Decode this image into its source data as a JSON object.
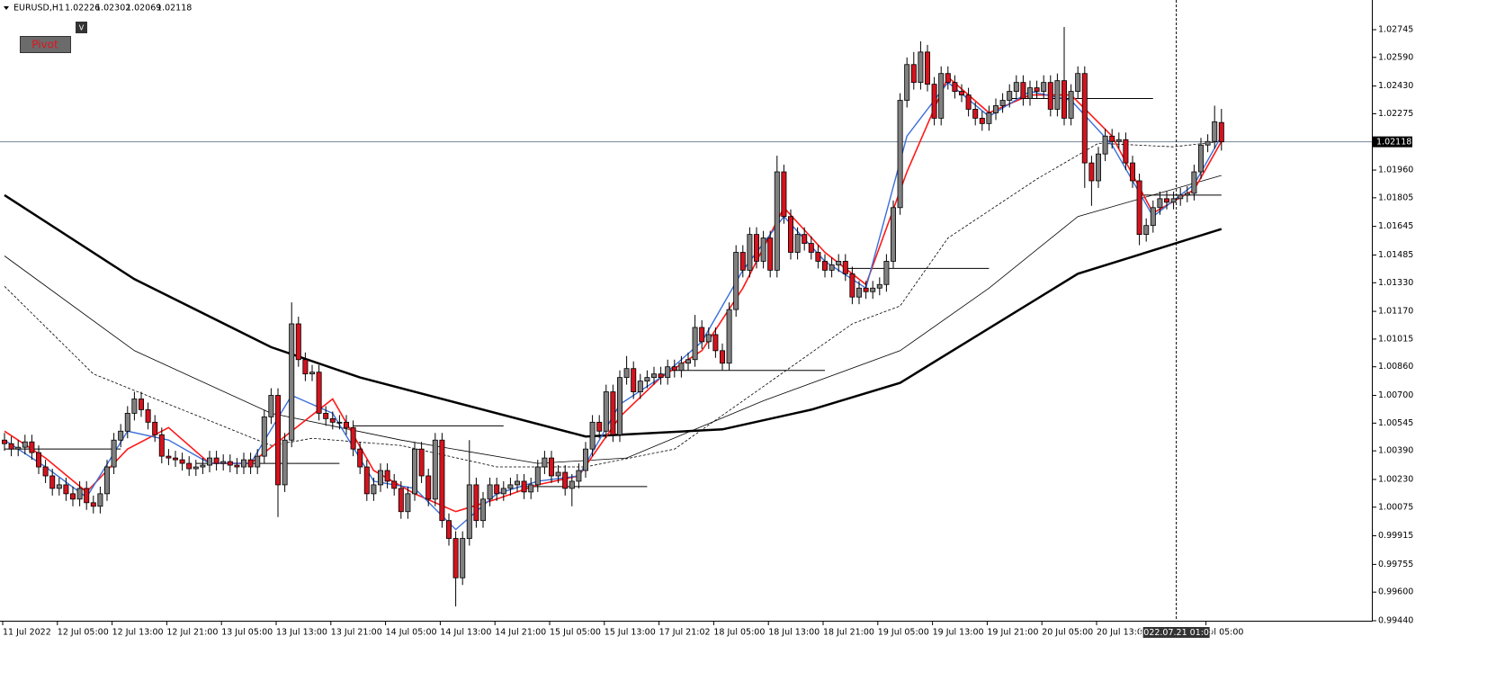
{
  "chart_data": {
    "type": "candlestick",
    "symbol": "EURUSD,H1",
    "buttons": {
      "pivot": "Pivot",
      "toggle": "V"
    },
    "categories": [
      "11 Jul 2022",
      null,
      null,
      null,
      null,
      null,
      null,
      null,
      "12 Jul 05:00",
      null,
      null,
      null,
      null,
      null,
      null,
      null,
      "12 Jul 13:00",
      null,
      null,
      null,
      null,
      null,
      null,
      null,
      "12 Jul 21:00",
      null,
      null,
      null,
      null,
      null,
      null,
      null,
      "13 Jul 05:00",
      null,
      null,
      null,
      null,
      null,
      null,
      null,
      "13 Jul 13:00",
      null,
      null,
      null,
      null,
      null,
      null,
      null,
      "13 Jul 21:00",
      null,
      null,
      null,
      null,
      null,
      null,
      null,
      "14 Jul 05:00",
      null,
      null,
      null,
      null,
      null,
      null,
      null,
      "14 Jul 13:00",
      null,
      null,
      null,
      null,
      null,
      null,
      null,
      "14 Jul 21:00",
      null,
      null,
      null,
      null,
      null,
      null,
      null,
      "15 Jul 05:00",
      null,
      null,
      null,
      null,
      null,
      null,
      null,
      "15 Jul 13:00",
      null,
      null,
      null,
      null,
      null,
      null,
      null,
      "17 Jul 21:02",
      null,
      null,
      null,
      null,
      null,
      null,
      null,
      "18 Jul 05:00",
      null,
      null,
      null,
      null,
      null,
      null,
      null,
      "18 Jul 13:00",
      null,
      null,
      null,
      null,
      null,
      null,
      null,
      "18 Jul 21:00",
      null,
      null,
      null,
      null,
      null,
      null,
      null,
      "19 Jul 05:00",
      null,
      null,
      null,
      null,
      null,
      null,
      null,
      "19 Jul 13:00",
      null,
      null,
      null,
      null,
      null,
      null,
      null,
      "19 Jul 21:00",
      null,
      null,
      null,
      null,
      null,
      null,
      null,
      "20 Jul 05:00",
      null,
      null,
      null,
      null,
      null,
      null,
      null,
      "20 Jul 13:00",
      null,
      null,
      null,
      null,
      null,
      null,
      null,
      null,
      null,
      null,
      null,
      null,
      null,
      null,
      null,
      "Jul 05:00",
      null,
      null
    ],
    "open": [
      1.0045,
      1.0043,
      1.004,
      1.0041,
      1.0044,
      1.0038,
      1.003,
      1.0025,
      1.0018,
      1.002,
      1.0015,
      1.0012,
      1.0018,
      1.001,
      1.0008,
      1.0015,
      1.003,
      1.0045,
      1.005,
      1.006,
      1.0068,
      1.0062,
      1.0055,
      1.0048,
      1.0036,
      1.0035,
      1.0034,
      1.0032,
      1.0029,
      1.003,
      1.0031,
      1.0035,
      1.0032,
      1.0033,
      1.0031,
      1.003,
      1.0034,
      1.003,
      1.0036,
      1.0058,
      1.007,
      1.002,
      1.0045,
      1.011,
      1.009,
      1.0082,
      1.0083,
      1.006,
      1.0057,
      1.0055,
      1.0055,
      1.0052,
      1.004,
      1.003,
      1.0015,
      1.002,
      1.0028,
      1.0022,
      1.0018,
      1.0005,
      1.0015,
      1.004,
      1.0025,
      1.0012,
      1.0045,
      1.0,
      0.999,
      0.9968,
      0.999,
      1.002,
      1.0,
      1.0012,
      1.002,
      1.0015,
      1.0018,
      1.002,
      1.0022,
      1.0016,
      1.002,
      1.003,
      1.0035,
      1.0025,
      1.0027,
      1.0018,
      1.0022,
      1.0028,
      1.004,
      1.0055,
      1.005,
      1.0072,
      1.0048,
      1.008,
      1.0085,
      1.0072,
      1.0078,
      1.008,
      1.0082,
      1.008,
      1.0086,
      1.0084,
      1.0088,
      1.009,
      1.0108,
      1.01,
      1.0104,
      1.0095,
      1.0088,
      1.0118,
      1.015,
      1.014,
      1.016,
      1.0145,
      1.0158,
      1.014,
      1.0195,
      1.017,
      1.015,
      1.016,
      1.0155,
      1.015,
      1.0145,
      1.014,
      1.0143,
      1.0145,
      1.0138,
      1.0125,
      1.013,
      1.0128,
      1.013,
      1.0132,
      1.0145,
      1.0175,
      1.0235,
      1.0255,
      1.0245,
      1.0262,
      1.0244,
      1.0225,
      1.025,
      1.0245,
      1.024,
      1.0238,
      1.023,
      1.0225,
      1.0222,
      1.0228,
      1.0232,
      1.0235,
      1.024,
      1.0245,
      1.0236,
      1.0242,
      1.024,
      1.0245,
      1.023,
      1.0246,
      1.0225,
      1.024,
      1.025,
      1.02,
      1.019,
      1.0205,
      1.0215,
      1.0212,
      1.0213,
      1.02,
      1.019,
      1.016,
      1.0165,
      1.0175,
      1.018,
      1.0178,
      1.018,
      1.0182,
      1.0183,
      1.0195,
      1.021,
      1.0212,
      1.02226
    ],
    "high": [
      1.0049,
      1.0047,
      1.0045,
      1.0048,
      1.0048,
      1.0042,
      1.0034,
      1.0029,
      1.0024,
      1.0024,
      1.0019,
      1.0022,
      1.0022,
      1.0014,
      1.0019,
      1.0034,
      1.0049,
      1.0054,
      1.0064,
      1.0072,
      1.0072,
      1.0066,
      1.0059,
      1.0052,
      1.004,
      1.0039,
      1.0038,
      1.0036,
      1.0034,
      1.0035,
      1.0039,
      1.0039,
      1.0037,
      1.0037,
      1.0035,
      1.0038,
      1.0038,
      1.004,
      1.0062,
      1.0074,
      1.0074,
      1.0049,
      1.0122,
      1.0114,
      1.0094,
      1.0087,
      1.0087,
      1.0064,
      1.0061,
      1.0059,
      1.0059,
      1.0056,
      1.0044,
      1.0034,
      1.0024,
      1.0032,
      1.0032,
      1.0026,
      1.0022,
      1.0019,
      1.0044,
      1.0044,
      1.0029,
      1.0049,
      1.0049,
      1.0004,
      0.9994,
      0.9994,
      1.0045,
      1.0024,
      1.0016,
      1.0024,
      1.0024,
      1.0022,
      1.0024,
      1.0026,
      1.0026,
      1.0024,
      1.0034,
      1.0039,
      1.0039,
      1.0031,
      1.0031,
      1.0026,
      1.0032,
      1.0044,
      1.0059,
      1.0059,
      1.0076,
      1.0076,
      1.0084,
      1.0092,
      1.0089,
      1.0082,
      1.0084,
      1.0086,
      1.0086,
      1.009,
      1.009,
      1.0092,
      1.0094,
      1.0115,
      1.0112,
      1.0108,
      1.0108,
      1.0099,
      1.0122,
      1.0154,
      1.0154,
      1.0164,
      1.0164,
      1.0162,
      1.0162,
      1.0204,
      1.0199,
      1.0174,
      1.0164,
      1.0164,
      1.0159,
      1.0154,
      1.0149,
      1.0147,
      1.0149,
      1.0149,
      1.0142,
      1.0134,
      1.0134,
      1.0134,
      1.0136,
      1.0149,
      1.0179,
      1.0239,
      1.0259,
      1.0262,
      1.0268,
      1.0266,
      1.0248,
      1.0254,
      1.0254,
      1.0249,
      1.0244,
      1.0242,
      1.0234,
      1.0229,
      1.0232,
      1.0236,
      1.0239,
      1.0244,
      1.0249,
      1.0249,
      1.0246,
      1.0246,
      1.0249,
      1.0249,
      1.025,
      1.0276,
      1.0244,
      1.0254,
      1.0254,
      1.0204,
      1.0209,
      1.0219,
      1.0219,
      1.0217,
      1.0217,
      1.0204,
      1.0194,
      1.0169,
      1.0179,
      1.0184,
      1.0184,
      1.0184,
      1.0186,
      1.0187,
      1.0199,
      1.0214,
      1.0216,
      1.0232,
      1.02302
    ],
    "low": [
      1.0039,
      1.0036,
      1.0036,
      1.0037,
      1.0034,
      1.0026,
      1.0021,
      1.0014,
      1.0014,
      1.0011,
      1.0008,
      1.0008,
      1.0006,
      1.0004,
      1.0004,
      1.0011,
      1.0026,
      1.0041,
      1.0046,
      1.0056,
      1.0058,
      1.0051,
      1.0044,
      1.0032,
      1.0031,
      1.003,
      1.0028,
      1.0025,
      1.0025,
      1.0026,
      1.0027,
      1.0028,
      1.0028,
      1.0027,
      1.0026,
      1.0026,
      1.0026,
      1.0026,
      1.0032,
      1.0054,
      1.0002,
      1.0016,
      1.0041,
      1.0086,
      1.0078,
      1.0078,
      1.0056,
      1.0053,
      1.0051,
      1.0051,
      1.0048,
      1.0036,
      1.0026,
      1.0011,
      1.0011,
      1.0016,
      1.0018,
      1.0014,
      1.0001,
      1.0001,
      1.0011,
      1.0021,
      1.0008,
      1.0008,
      0.9996,
      0.9986,
      0.9952,
      0.9964,
      0.9986,
      0.9996,
      0.9996,
      1.0008,
      1.0011,
      1.0011,
      1.0014,
      1.0016,
      1.0012,
      1.0012,
      1.0016,
      1.0026,
      1.0021,
      1.0021,
      1.0014,
      1.0008,
      1.0018,
      1.0024,
      1.0036,
      1.0046,
      1.0046,
      1.0044,
      1.0044,
      1.0076,
      1.0068,
      1.0068,
      1.0074,
      1.0076,
      1.0076,
      1.0076,
      1.008,
      1.008,
      1.0084,
      1.0086,
      1.0096,
      1.0096,
      1.0091,
      1.0084,
      1.0084,
      1.0114,
      1.0136,
      1.0136,
      1.0141,
      1.0141,
      1.0136,
      1.0136,
      1.0166,
      1.0146,
      1.0146,
      1.0151,
      1.0146,
      1.0141,
      1.0136,
      1.0136,
      1.0139,
      1.0134,
      1.0121,
      1.0121,
      1.0124,
      1.0124,
      1.0126,
      1.0128,
      1.0141,
      1.0171,
      1.0231,
      1.0241,
      1.0241,
      1.024,
      1.0221,
      1.0221,
      1.0241,
      1.0236,
      1.0234,
      1.0226,
      1.0221,
      1.0218,
      1.0218,
      1.0224,
      1.0228,
      1.0231,
      1.0236,
      1.0232,
      1.0232,
      1.0236,
      1.0236,
      1.0226,
      1.0226,
      1.0221,
      1.0221,
      1.0236,
      1.0186,
      1.0176,
      1.0186,
      1.0201,
      1.0208,
      1.0208,
      1.0196,
      1.0186,
      1.0154,
      1.0156,
      1.0161,
      1.0171,
      1.0174,
      1.0174,
      1.0176,
      1.0178,
      1.0179,
      1.0191,
      1.0206,
      1.0208,
      1.02069
    ],
    "close": [
      1.0043,
      1.004,
      1.0041,
      1.0044,
      1.0038,
      1.003,
      1.0025,
      1.0018,
      1.002,
      1.0015,
      1.0012,
      1.0018,
      1.001,
      1.0008,
      1.0015,
      1.003,
      1.0045,
      1.005,
      1.006,
      1.0068,
      1.0062,
      1.0055,
      1.0048,
      1.0036,
      1.0035,
      1.0034,
      1.0032,
      1.0029,
      1.003,
      1.0031,
      1.0035,
      1.0032,
      1.0033,
      1.0031,
      1.003,
      1.0034,
      1.003,
      1.0036,
      1.0058,
      1.007,
      1.002,
      1.0045,
      1.011,
      1.009,
      1.0082,
      1.0083,
      1.006,
      1.0057,
      1.0055,
      1.0055,
      1.0052,
      1.004,
      1.003,
      1.0015,
      1.002,
      1.0028,
      1.0022,
      1.0018,
      1.0005,
      1.0015,
      1.004,
      1.0025,
      1.0012,
      1.0045,
      1.0,
      0.999,
      0.9968,
      0.999,
      1.002,
      1.0,
      1.0012,
      1.002,
      1.0015,
      1.0018,
      1.002,
      1.0022,
      1.0016,
      1.002,
      1.003,
      1.0035,
      1.0025,
      1.0027,
      1.0018,
      1.0022,
      1.0028,
      1.004,
      1.0055,
      1.005,
      1.0072,
      1.0048,
      1.008,
      1.0085,
      1.0072,
      1.0078,
      1.008,
      1.0082,
      1.008,
      1.0086,
      1.0084,
      1.0088,
      1.009,
      1.0108,
      1.01,
      1.0104,
      1.0095,
      1.0088,
      1.0118,
      1.015,
      1.014,
      1.016,
      1.0145,
      1.0158,
      1.014,
      1.0195,
      1.017,
      1.015,
      1.016,
      1.0155,
      1.015,
      1.0145,
      1.014,
      1.0143,
      1.0145,
      1.0138,
      1.0125,
      1.013,
      1.0128,
      1.013,
      1.0132,
      1.0145,
      1.0175,
      1.0235,
      1.0255,
      1.0245,
      1.0262,
      1.0244,
      1.0225,
      1.025,
      1.0245,
      1.024,
      1.0238,
      1.023,
      1.0225,
      1.0222,
      1.0228,
      1.0232,
      1.0235,
      1.024,
      1.0245,
      1.0236,
      1.0242,
      1.024,
      1.0245,
      1.023,
      1.0246,
      1.0225,
      1.024,
      1.025,
      1.02,
      1.019,
      1.0205,
      1.0215,
      1.0212,
      1.0213,
      1.02,
      1.019,
      1.016,
      1.0165,
      1.0175,
      1.018,
      1.0178,
      1.018,
      1.0182,
      1.0183,
      1.0195,
      1.021,
      1.0212,
      1.0223,
      1.02118
    ],
    "up_color": "#808080",
    "down_color": "#d3141f",
    "indicators": [
      {
        "color": "#000000",
        "width": 2.5,
        "dashed": false,
        "x": [
          0,
          19,
          39,
          52,
          85,
          105,
          118,
          131,
          157,
          178
        ],
        "values": [
          1.0182,
          1.0135,
          1.0097,
          1.008,
          1.0047,
          1.0051,
          1.0062,
          1.0077,
          1.0138,
          1.0163
        ]
      },
      {
        "color": "#000000",
        "width": 0.8,
        "dashed": false,
        "x": [
          0,
          19,
          39,
          58,
          78,
          91,
          111,
          131,
          144,
          157,
          178
        ],
        "values": [
          1.0148,
          1.0095,
          1.006,
          1.0045,
          1.0032,
          1.0035,
          1.0067,
          1.0095,
          1.013,
          1.017,
          1.0193
        ]
      },
      {
        "color": "#000000",
        "width": 0.8,
        "dashed": true,
        "x": [
          0,
          13,
          26,
          39,
          45,
          58,
          72,
          85,
          98,
          111,
          124,
          131,
          138,
          151,
          160,
          171,
          178
        ],
        "values": [
          1.0131,
          1.0082,
          1.0062,
          1.0042,
          1.0046,
          1.0042,
          1.003,
          1.003,
          1.004,
          1.0075,
          1.011,
          1.012,
          1.0158,
          1.0191,
          1.0211,
          1.0209,
          1.0212
        ]
      },
      {
        "color": "#ff1a1a",
        "width": 1.6,
        "dashed": false,
        "x": [
          0,
          6,
          12,
          18,
          24,
          30,
          36,
          42,
          48,
          54,
          60,
          66,
          72,
          78,
          84,
          90,
          96,
          102,
          108,
          114,
          120,
          126,
          132,
          138,
          144,
          150,
          156,
          162,
          168,
          174,
          178
        ],
        "values": [
          1.005,
          1.0035,
          1.0016,
          1.004,
          1.0052,
          1.0032,
          1.0032,
          1.005,
          1.0068,
          1.0028,
          1.0015,
          1.0005,
          1.0012,
          1.002,
          1.0025,
          1.0058,
          1.008,
          1.0095,
          1.013,
          1.0175,
          1.015,
          1.0132,
          1.0195,
          1.0248,
          1.0228,
          1.0238,
          1.0238,
          1.0215,
          1.0172,
          1.0185,
          1.0212
        ]
      },
      {
        "color": "#3a6fd8",
        "width": 1.4,
        "dashed": false,
        "x": [
          0,
          6,
          12,
          18,
          24,
          30,
          36,
          42,
          48,
          54,
          60,
          66,
          72,
          78,
          84,
          90,
          96,
          102,
          108,
          114,
          120,
          126,
          132,
          138,
          144,
          150,
          156,
          162,
          168,
          174,
          178
        ],
        "values": [
          1.0045,
          1.003,
          1.0013,
          1.005,
          1.0045,
          1.0032,
          1.0032,
          1.007,
          1.006,
          1.0022,
          1.0018,
          0.9995,
          1.0015,
          1.0022,
          1.0025,
          1.0065,
          1.008,
          1.01,
          1.014,
          1.017,
          1.0145,
          1.013,
          1.0215,
          1.0245,
          1.0226,
          1.024,
          1.0235,
          1.021,
          1.017,
          1.0188,
          1.0215
        ]
      }
    ],
    "levels": [
      {
        "value": 1.004,
        "from": 0,
        "to": 17
      },
      {
        "value": 1.0032,
        "from": 28,
        "to": 49
      },
      {
        "value": 1.0053,
        "from": 51,
        "to": 73
      },
      {
        "value": 1.0019,
        "from": 76,
        "to": 94
      },
      {
        "value": 1.0084,
        "from": 97,
        "to": 120
      },
      {
        "value": 1.0141,
        "from": 123,
        "to": 144
      },
      {
        "value": 1.0236,
        "from": 147,
        "to": 168
      },
      {
        "value": 1.0182,
        "from": 166,
        "to": 178
      }
    ],
    "current_price": 1.02118,
    "crosshair": {
      "x": 171.4,
      "label": "2022.07.21 01:00"
    },
    "ylim": [
      0.9944,
      1.02911
    ],
    "yticks": [
      1.02745,
      {
        "value": 1.0259,
        "label": "1.02590"
      },
      {
        "value": 1.0243,
        "label": "1.02430"
      },
      1.02275,
      {
        "value": 1.0196,
        "label": "1.01960"
      },
      1.01805,
      1.01645,
      1.01485,
      {
        "value": 1.0133,
        "label": "1.01330"
      },
      {
        "value": 1.0117,
        "label": "1.01170"
      },
      1.01015,
      {
        "value": 1.0086,
        "label": "1.00860"
      },
      {
        "value": 1.007,
        "label": "1.00700"
      },
      1.00545,
      {
        "value": 1.0039,
        "label": "1.00390"
      },
      {
        "value": 1.0023,
        "label": "1.00230"
      },
      1.00075,
      0.99915,
      0.99755,
      {
        "value": 0.996,
        "label": "0.99600"
      },
      {
        "value": 0.9944,
        "label": "0.99440"
      }
    ]
  }
}
